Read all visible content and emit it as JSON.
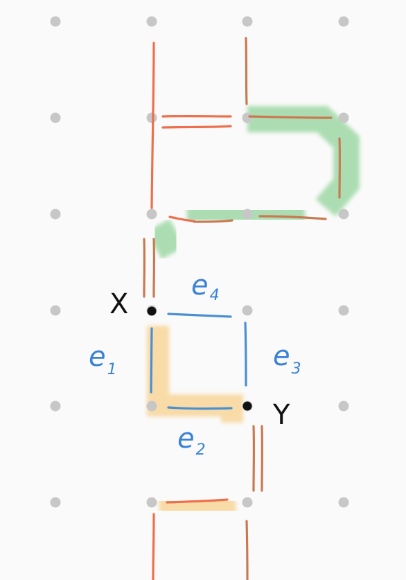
{
  "points": {
    "x": {
      "label": "X"
    },
    "y": {
      "label": "Y"
    }
  },
  "edges": {
    "e1": {
      "label": "e",
      "sub": "1"
    },
    "e2": {
      "label": "e",
      "sub": "2"
    },
    "e3": {
      "label": "e",
      "sub": "3"
    },
    "e4": {
      "label": "e",
      "sub": "4"
    }
  },
  "colors": {
    "background": "#fafafa",
    "grid_dot": "#c7c7c7",
    "edge_orange": "#ee6f4b",
    "edge_blue": "#4a8fd0",
    "edge_brown": "#c87a52",
    "highlight_yellow": "#f7d392",
    "highlight_green": "#9fd8a6",
    "point": "#111111",
    "label_blue": "#3b82d6",
    "label_black": "#111111"
  }
}
